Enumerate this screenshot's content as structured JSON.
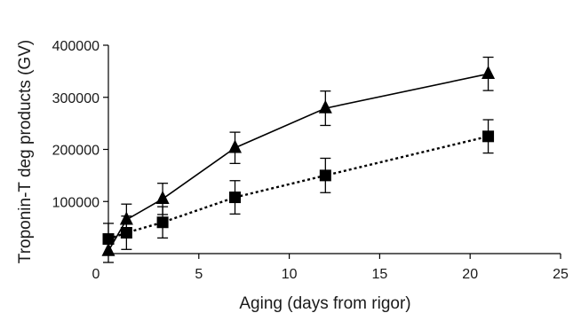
{
  "chart_data": {
    "type": "line",
    "xlabel": "Aging (days from rigor)",
    "ylabel": "Troponin-T deg products (GV)",
    "xlim": [
      0,
      25
    ],
    "ylim": [
      0,
      400000
    ],
    "x_ticks": [
      "0",
      "5",
      "10",
      "15",
      "20",
      "25"
    ],
    "y_ticks": [
      "100000",
      "200000",
      "300000",
      "400000"
    ],
    "grid": false,
    "legend": "none",
    "series": [
      {
        "marker": "triangle",
        "line_style": "solid",
        "color": "#000000",
        "x": [
          0,
          1,
          3,
          7,
          12,
          21
        ],
        "y": [
          5000,
          65000,
          105000,
          203000,
          279000,
          345000
        ],
        "error": [
          22000,
          30000,
          30000,
          30000,
          33000,
          32000
        ]
      },
      {
        "marker": "square",
        "line_style": "dotted",
        "color": "#000000",
        "x": [
          0,
          1,
          3,
          7,
          12,
          21
        ],
        "y": [
          28000,
          40000,
          60000,
          108000,
          150000,
          225000
        ],
        "error": [
          30000,
          32000,
          30000,
          32000,
          33000,
          32000
        ]
      }
    ]
  }
}
